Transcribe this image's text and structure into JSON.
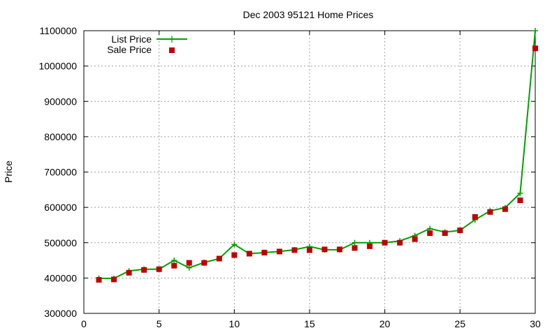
{
  "chart_data": {
    "type": "line",
    "title": "Dec 2003 95121 Home Prices",
    "xlabel": "",
    "ylabel": "Price",
    "xlim": [
      0,
      30
    ],
    "ylim": [
      300000,
      1100000
    ],
    "x_ticks": [
      0,
      5,
      10,
      15,
      20,
      25,
      30
    ],
    "y_ticks": [
      300000,
      400000,
      500000,
      600000,
      700000,
      800000,
      900000,
      1000000,
      1100000
    ],
    "grid": true,
    "legend_position": "top-left",
    "colors": {
      "list": "#00a000",
      "sale": "#c00000"
    },
    "x": [
      1,
      2,
      3,
      4,
      5,
      6,
      7,
      8,
      9,
      10,
      11,
      12,
      13,
      14,
      15,
      16,
      17,
      18,
      19,
      20,
      21,
      22,
      23,
      24,
      25,
      26,
      27,
      28,
      29,
      30
    ],
    "series": [
      {
        "name": "List Price",
        "style": "line-with-plus-markers",
        "values": [
          399000,
          399000,
          420000,
          425000,
          425000,
          450000,
          429000,
          444000,
          455000,
          495000,
          469000,
          472000,
          475000,
          480000,
          489000,
          480000,
          480000,
          500000,
          500000,
          500000,
          505000,
          520000,
          540000,
          530000,
          535000,
          565000,
          590000,
          599000,
          640000,
          1100000
        ]
      },
      {
        "name": "Sale Price",
        "style": "square-markers",
        "values": [
          395000,
          396000,
          415000,
          423000,
          425000,
          435000,
          443000,
          443000,
          455000,
          465000,
          469000,
          472000,
          475000,
          479000,
          479000,
          481000,
          481000,
          485000,
          490000,
          500000,
          500000,
          510000,
          527000,
          527000,
          535000,
          573000,
          587000,
          595000,
          620000,
          1050000
        ]
      }
    ]
  }
}
